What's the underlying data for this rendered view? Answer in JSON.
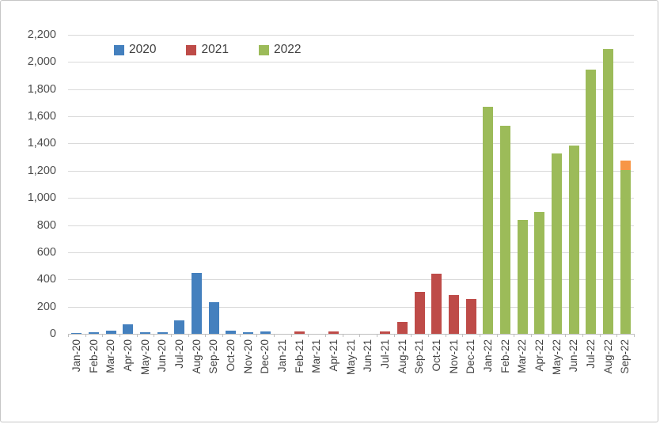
{
  "chart_data": {
    "type": "bar",
    "title": "",
    "xlabel": "",
    "ylabel": "",
    "grid": true,
    "legend": {
      "position": "top",
      "entries": [
        {
          "label": "2020",
          "series": "2020"
        },
        {
          "label": "2021",
          "series": "2021"
        },
        {
          "label": "2022",
          "series": "2022"
        }
      ]
    },
    "series_colors": {
      "2020": "#4480be",
      "2021": "#be4b48",
      "2022": "#9cbb59",
      "partial": "#f79646"
    },
    "axes": {
      "y": {
        "min": 0,
        "max": 2200,
        "step": 200,
        "tick_labels": [
          "0",
          "200",
          "400",
          "600",
          "800",
          "1,000",
          "1,200",
          "1,400",
          "1,600",
          "1,800",
          "2,000",
          "2,200"
        ]
      },
      "x": {
        "label_rotation_deg": -90
      }
    },
    "bars": [
      {
        "month": "Jan-20",
        "segments": [
          {
            "series": "2020",
            "value": 8
          }
        ]
      },
      {
        "month": "Feb-20",
        "segments": [
          {
            "series": "2020",
            "value": 12
          }
        ]
      },
      {
        "month": "Mar-20",
        "segments": [
          {
            "series": "2020",
            "value": 25
          }
        ]
      },
      {
        "month": "Apr-20",
        "segments": [
          {
            "series": "2020",
            "value": 70
          }
        ]
      },
      {
        "month": "May-20",
        "segments": [
          {
            "series": "2020",
            "value": 12
          }
        ]
      },
      {
        "month": "Jun-20",
        "segments": [
          {
            "series": "2020",
            "value": 12
          }
        ]
      },
      {
        "month": "Jul-20",
        "segments": [
          {
            "series": "2020",
            "value": 100
          }
        ]
      },
      {
        "month": "Aug-20",
        "segments": [
          {
            "series": "2020",
            "value": 450
          }
        ]
      },
      {
        "month": "Sep-20",
        "segments": [
          {
            "series": "2020",
            "value": 230
          }
        ]
      },
      {
        "month": "Oct-20",
        "segments": [
          {
            "series": "2020",
            "value": 23
          }
        ]
      },
      {
        "month": "Nov-20",
        "segments": [
          {
            "series": "2020",
            "value": 10
          }
        ]
      },
      {
        "month": "Dec-20",
        "segments": [
          {
            "series": "2020",
            "value": 15
          }
        ]
      },
      {
        "month": "Jan-21",
        "segments": [
          {
            "series": "2021",
            "value": 0
          }
        ]
      },
      {
        "month": "Feb-21",
        "segments": [
          {
            "series": "2021",
            "value": 15
          }
        ]
      },
      {
        "month": "Mar-21",
        "segments": [
          {
            "series": "2021",
            "value": 0
          }
        ]
      },
      {
        "month": "Apr-21",
        "segments": [
          {
            "series": "2021",
            "value": 15
          }
        ]
      },
      {
        "month": "May-21",
        "segments": [
          {
            "series": "2021",
            "value": 0
          }
        ]
      },
      {
        "month": "Jun-21",
        "segments": [
          {
            "series": "2021",
            "value": 0
          }
        ]
      },
      {
        "month": "Jul-21",
        "segments": [
          {
            "series": "2021",
            "value": 20
          }
        ]
      },
      {
        "month": "Aug-21",
        "segments": [
          {
            "series": "2021",
            "value": 90
          }
        ]
      },
      {
        "month": "Sep-21",
        "segments": [
          {
            "series": "2021",
            "value": 310
          }
        ]
      },
      {
        "month": "Oct-21",
        "segments": [
          {
            "series": "2021",
            "value": 443
          }
        ]
      },
      {
        "month": "Nov-21",
        "segments": [
          {
            "series": "2021",
            "value": 284
          }
        ]
      },
      {
        "month": "Dec-21",
        "segments": [
          {
            "series": "2021",
            "value": 258
          }
        ]
      },
      {
        "month": "Jan-22",
        "segments": [
          {
            "series": "2022",
            "value": 1670
          }
        ]
      },
      {
        "month": "Feb-22",
        "segments": [
          {
            "series": "2022",
            "value": 1530
          }
        ]
      },
      {
        "month": "Mar-22",
        "segments": [
          {
            "series": "2022",
            "value": 840
          }
        ]
      },
      {
        "month": "Apr-22",
        "segments": [
          {
            "series": "2022",
            "value": 895
          }
        ]
      },
      {
        "month": "May-22",
        "segments": [
          {
            "series": "2022",
            "value": 1325
          }
        ]
      },
      {
        "month": "Jun-22",
        "segments": [
          {
            "series": "2022",
            "value": 1385
          }
        ]
      },
      {
        "month": "Jul-22",
        "segments": [
          {
            "series": "2022",
            "value": 1945
          }
        ]
      },
      {
        "month": "Aug-22",
        "segments": [
          {
            "series": "2022",
            "value": 2095
          }
        ]
      },
      {
        "month": "Sep-22",
        "segments": [
          {
            "series": "2022",
            "value": 1205
          },
          {
            "series": "partial",
            "value": 70
          }
        ]
      }
    ]
  }
}
